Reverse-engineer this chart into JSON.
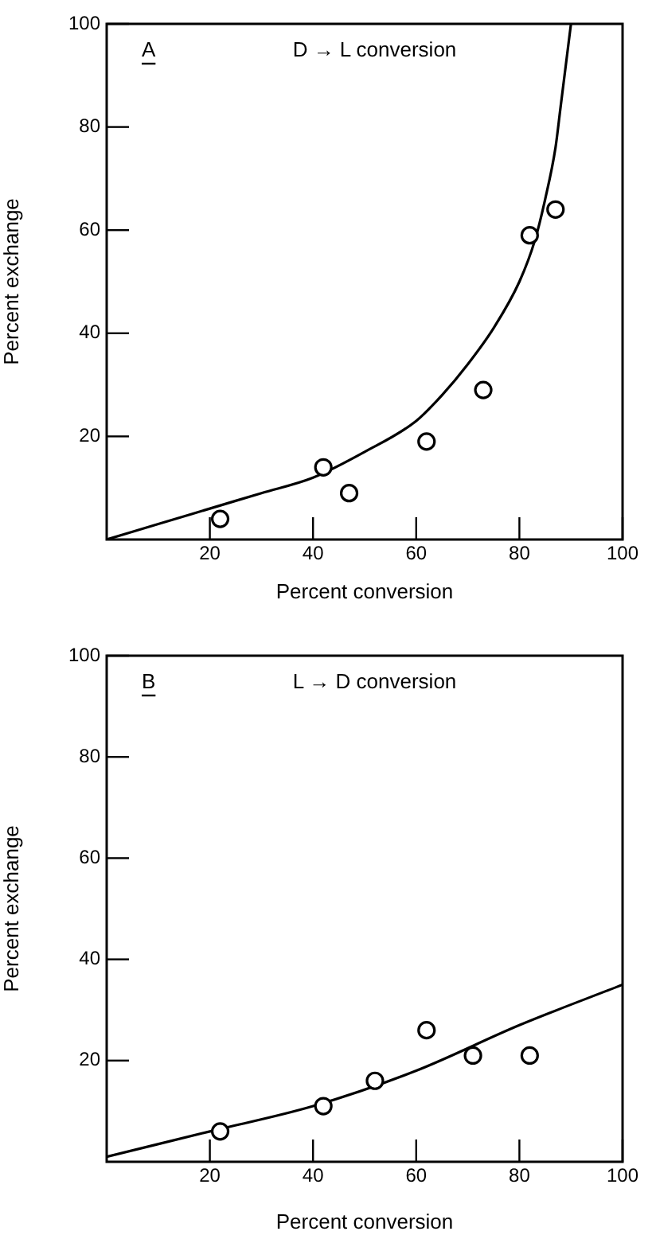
{
  "chart_data": [
    {
      "type": "scatter",
      "xlabel": "Percent conversion",
      "ylabel": "Percent exchange",
      "annotations": [
        "A",
        "D → L conversion"
      ],
      "xlim": [
        0,
        100
      ],
      "ylim": [
        0,
        100
      ],
      "xticks": [
        20,
        40,
        60,
        80,
        100
      ],
      "yticks": [
        20,
        40,
        60,
        80,
        100
      ],
      "grid": false,
      "legend": false,
      "series": [
        {
          "color": "#000000",
          "marker": "circle",
          "x": [
            22,
            42,
            47,
            62,
            73,
            82,
            87
          ],
          "values": [
            4,
            14,
            9,
            19,
            29,
            59,
            64
          ]
        },
        {
          "type": "line",
          "color": "#000000",
          "marker": "none",
          "x": [
            0,
            10,
            20,
            30,
            40,
            50,
            60,
            65,
            70,
            75,
            80,
            83,
            85,
            87,
            88,
            89,
            90
          ],
          "values": [
            0,
            3,
            6,
            9,
            12,
            17,
            23,
            28,
            34,
            41,
            50,
            58,
            66,
            76,
            84,
            92,
            100
          ]
        }
      ]
    },
    {
      "type": "scatter",
      "xlabel": "Percent conversion",
      "ylabel": "Percent exchange",
      "annotations": [
        "B",
        "L → D conversion"
      ],
      "xlim": [
        0,
        100
      ],
      "ylim": [
        0,
        100
      ],
      "xticks": [
        20,
        40,
        60,
        80,
        100
      ],
      "yticks": [
        20,
        40,
        60,
        80,
        100
      ],
      "grid": false,
      "legend": false,
      "series": [
        {
          "color": "#000000",
          "marker": "circle",
          "x": [
            22,
            42,
            52,
            62,
            71,
            82
          ],
          "values": [
            6,
            11,
            16,
            26,
            21,
            21
          ]
        },
        {
          "type": "line",
          "color": "#000000",
          "marker": "none",
          "x": [
            0,
            20,
            40,
            60,
            80,
            100
          ],
          "values": [
            1,
            6,
            11,
            18,
            27,
            35
          ]
        }
      ]
    }
  ]
}
